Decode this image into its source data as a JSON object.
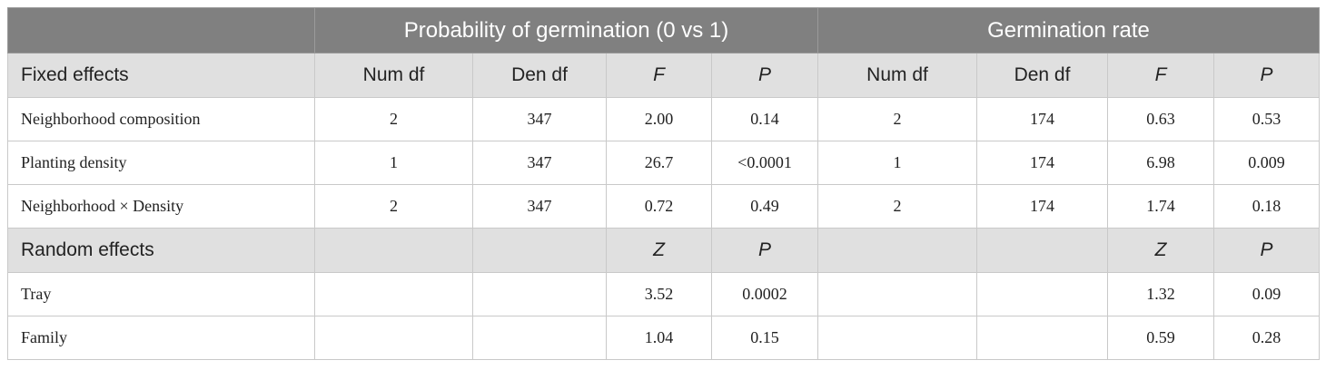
{
  "header": {
    "left_title": "Probability of germination (0 vs 1)",
    "right_title": "Germination rate"
  },
  "fixed_effects": {
    "label": "Fixed effects",
    "columns": [
      "Num df",
      "Den df",
      "F",
      "P",
      "Num df",
      "Den df",
      "F",
      "P"
    ],
    "rows": [
      {
        "label": "Neighborhood composition",
        "values": [
          "2",
          "347",
          "2.00",
          "0.14",
          "2",
          "174",
          "0.63",
          "0.53"
        ]
      },
      {
        "label": "Planting density",
        "values": [
          "1",
          "347",
          "26.7",
          "<0.0001",
          "1",
          "174",
          "6.98",
          "0.009"
        ]
      },
      {
        "label": "Neighborhood × Density",
        "values": [
          "2",
          "347",
          "0.72",
          "0.49",
          "2",
          "174",
          "1.74",
          "0.18"
        ]
      }
    ]
  },
  "random_effects": {
    "label": "Random effects",
    "left_columns": [
      "Z",
      "P"
    ],
    "right_columns": [
      "Z",
      "P"
    ],
    "rows": [
      {
        "label": "Tray",
        "left": [
          "3.52",
          "0.0002"
        ],
        "right": [
          "1.32",
          "0.09"
        ]
      },
      {
        "label": "Family",
        "left": [
          "1.04",
          "0.15"
        ],
        "right": [
          "0.59",
          "0.28"
        ]
      }
    ]
  }
}
